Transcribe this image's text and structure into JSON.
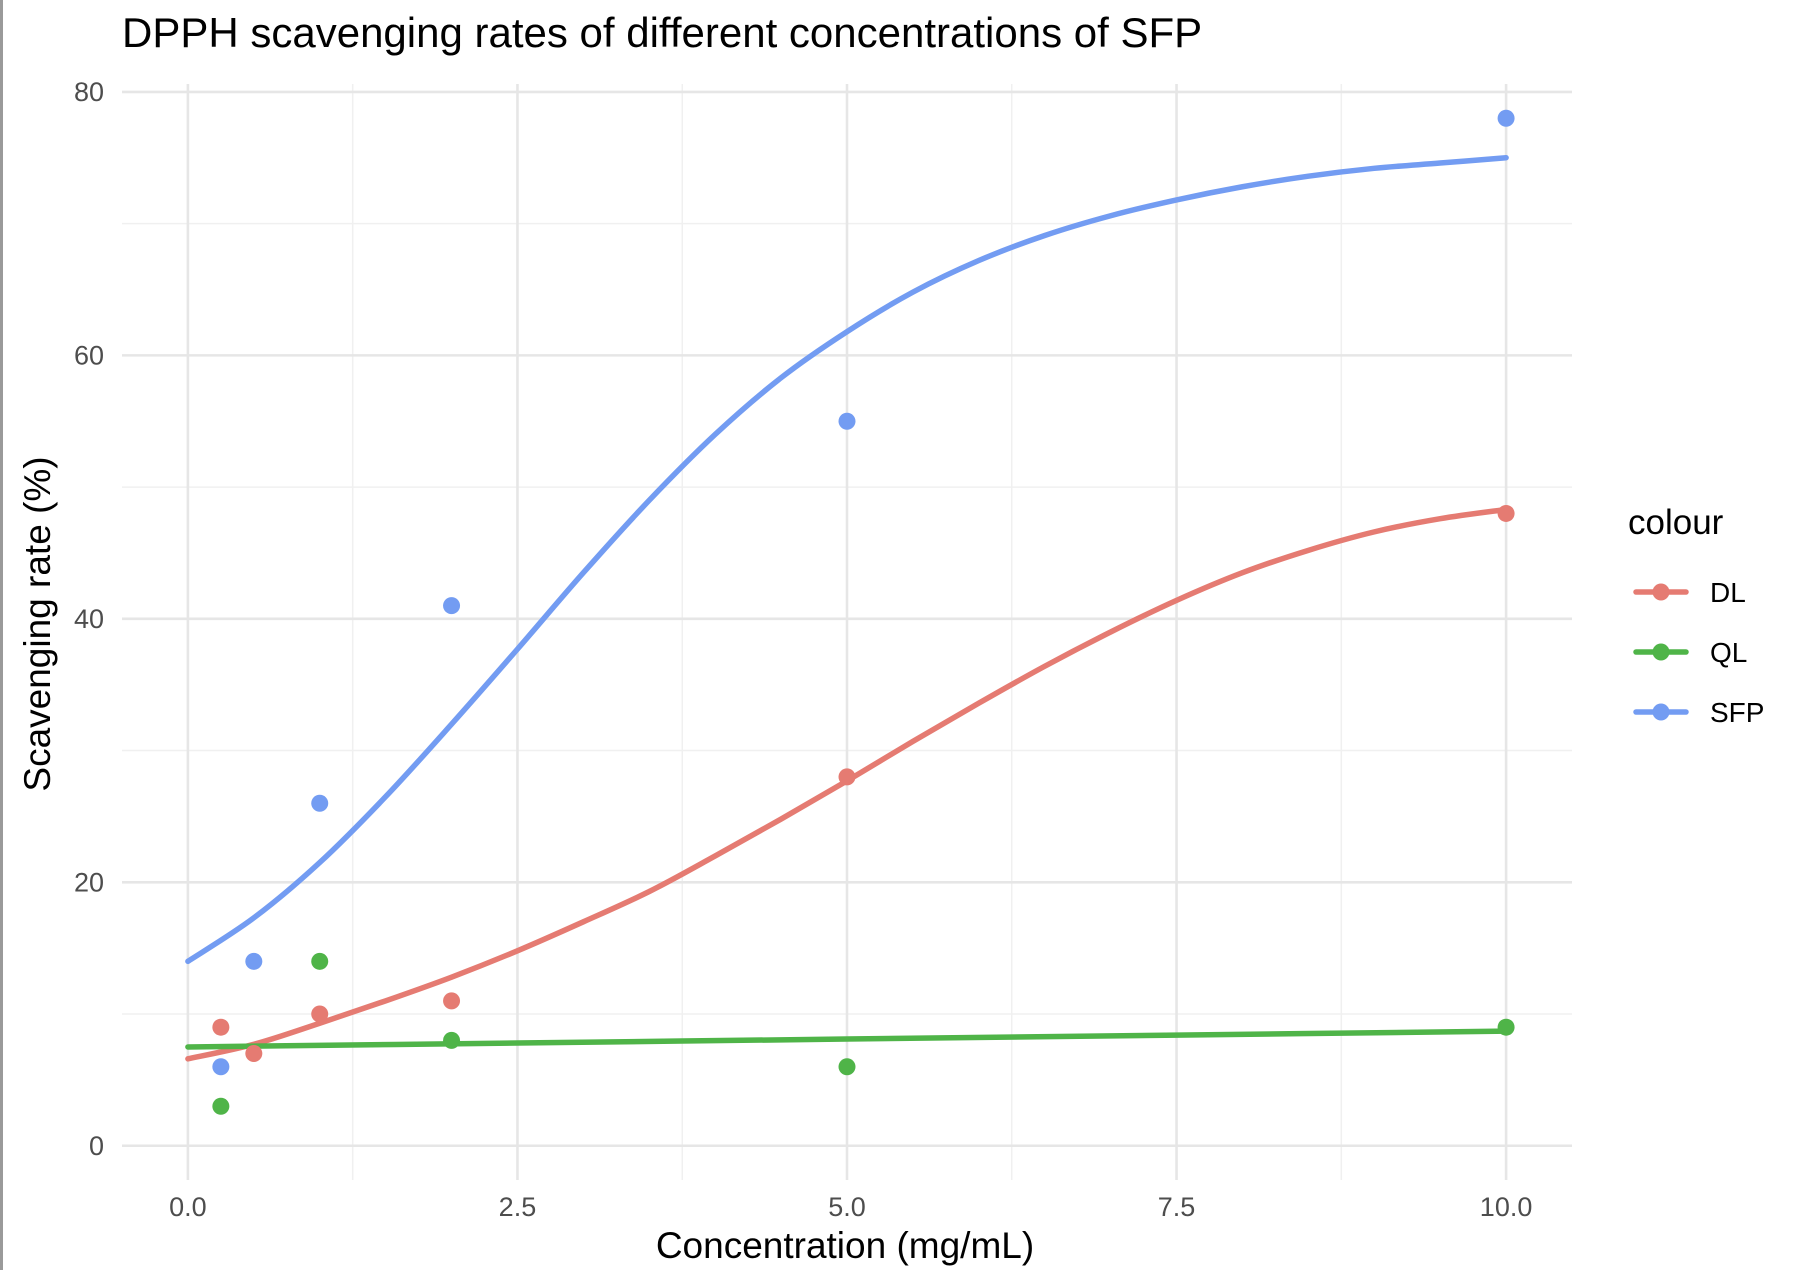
{
  "chart_data": {
    "type": "scatter",
    "title": "DPPH scavenging rates of different concentrations of SFP",
    "xlabel": "Concentration (mg/mL)",
    "ylabel": "Scavenging rate (%)",
    "xlim": [
      -0.5,
      10.5
    ],
    "ylim": [
      -2.6,
      80.6
    ],
    "x_ticks": [
      0,
      2.5,
      5,
      7.5,
      10
    ],
    "x_tick_labels": [
      "0.0",
      "2.5",
      "5.0",
      "7.5",
      "10.0"
    ],
    "y_ticks": [
      0,
      20,
      40,
      60,
      80
    ],
    "y_tick_labels": [
      "0",
      "20",
      "40",
      "60",
      "80"
    ],
    "x_minor_ticks": [
      1.25,
      3.75,
      6.25,
      8.75
    ],
    "y_minor_ticks": [
      10,
      30,
      50,
      70
    ],
    "grid": true,
    "legend": {
      "title": "colour",
      "position": "right"
    },
    "series": [
      {
        "name": "DL",
        "color": "#e57b72",
        "points": [
          {
            "x": 0.25,
            "y": 9
          },
          {
            "x": 0.5,
            "y": 7
          },
          {
            "x": 1,
            "y": 10
          },
          {
            "x": 2,
            "y": 11
          },
          {
            "x": 5,
            "y": 28
          },
          {
            "x": 10,
            "y": 48
          }
        ],
        "fit": [
          {
            "x": 0,
            "y": 6.6
          },
          {
            "x": 0.5,
            "y": 7.7
          },
          {
            "x": 1,
            "y": 9.3
          },
          {
            "x": 1.5,
            "y": 11
          },
          {
            "x": 2,
            "y": 12.8
          },
          {
            "x": 2.5,
            "y": 14.8
          },
          {
            "x": 3,
            "y": 17
          },
          {
            "x": 3.5,
            "y": 19.3
          },
          {
            "x": 4,
            "y": 22
          },
          {
            "x": 4.5,
            "y": 24.8
          },
          {
            "x": 5,
            "y": 27.7
          },
          {
            "x": 5.5,
            "y": 30.7
          },
          {
            "x": 6,
            "y": 33.6
          },
          {
            "x": 6.5,
            "y": 36.4
          },
          {
            "x": 7,
            "y": 39
          },
          {
            "x": 7.5,
            "y": 41.4
          },
          {
            "x": 8,
            "y": 43.5
          },
          {
            "x": 8.5,
            "y": 45.2
          },
          {
            "x": 9,
            "y": 46.6
          },
          {
            "x": 9.5,
            "y": 47.6
          },
          {
            "x": 10,
            "y": 48.3
          }
        ]
      },
      {
        "name": "QL",
        "color": "#4fb448",
        "points": [
          {
            "x": 0.25,
            "y": 3
          },
          {
            "x": 1,
            "y": 14
          },
          {
            "x": 2,
            "y": 8
          },
          {
            "x": 5,
            "y": 6
          },
          {
            "x": 10,
            "y": 9
          }
        ],
        "fit": [
          {
            "x": 0,
            "y": 7.5
          },
          {
            "x": 2.5,
            "y": 7.8
          },
          {
            "x": 5,
            "y": 8.1
          },
          {
            "x": 7.5,
            "y": 8.4
          },
          {
            "x": 10,
            "y": 8.7
          }
        ]
      },
      {
        "name": "SFP",
        "color": "#739cf2",
        "points": [
          {
            "x": 0.25,
            "y": 6
          },
          {
            "x": 0.5,
            "y": 14
          },
          {
            "x": 1,
            "y": 26
          },
          {
            "x": 2,
            "y": 41
          },
          {
            "x": 5,
            "y": 55
          },
          {
            "x": 10,
            "y": 78
          }
        ],
        "fit": [
          {
            "x": 0,
            "y": 14
          },
          {
            "x": 0.5,
            "y": 17.3
          },
          {
            "x": 1,
            "y": 21.5
          },
          {
            "x": 1.5,
            "y": 26.5
          },
          {
            "x": 2,
            "y": 32
          },
          {
            "x": 2.5,
            "y": 37.7
          },
          {
            "x": 3,
            "y": 43.5
          },
          {
            "x": 3.5,
            "y": 49
          },
          {
            "x": 4,
            "y": 54
          },
          {
            "x": 4.5,
            "y": 58.3
          },
          {
            "x": 5,
            "y": 61.8
          },
          {
            "x": 5.5,
            "y": 64.8
          },
          {
            "x": 6,
            "y": 67.2
          },
          {
            "x": 6.5,
            "y": 69.1
          },
          {
            "x": 7,
            "y": 70.6
          },
          {
            "x": 7.5,
            "y": 71.8
          },
          {
            "x": 8,
            "y": 72.8
          },
          {
            "x": 8.5,
            "y": 73.6
          },
          {
            "x": 9,
            "y": 74.2
          },
          {
            "x": 9.5,
            "y": 74.6
          },
          {
            "x": 10,
            "y": 75
          }
        ]
      }
    ]
  }
}
